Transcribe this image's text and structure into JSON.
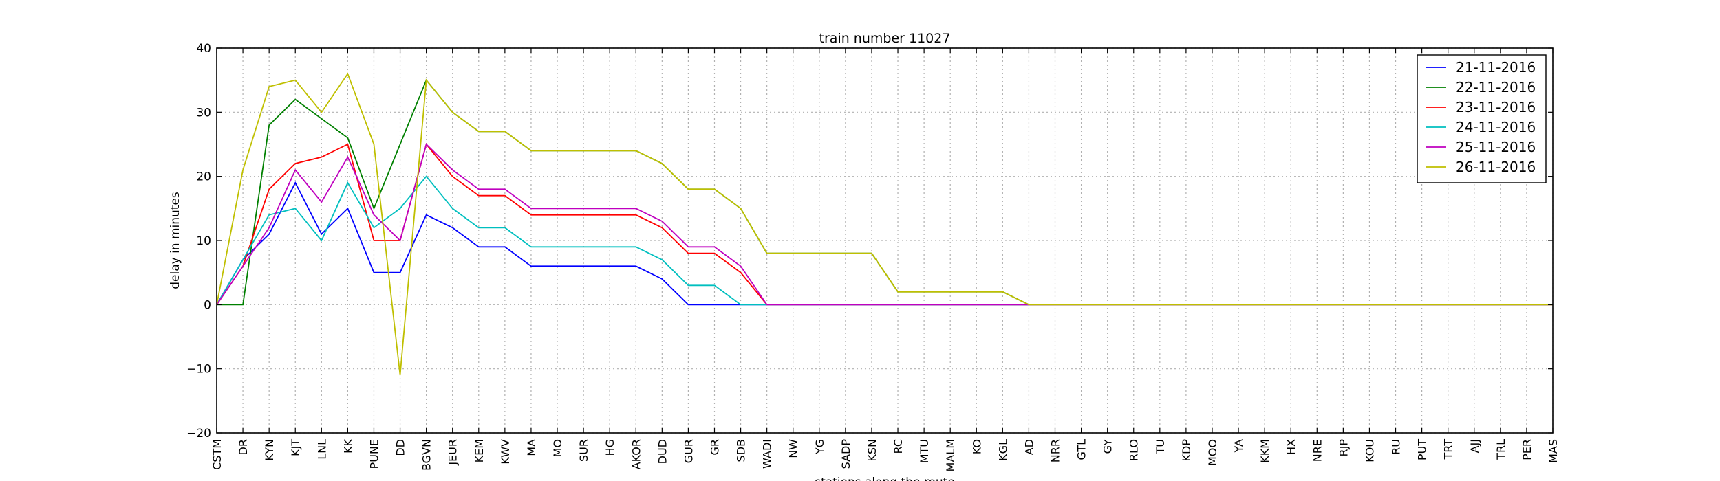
{
  "chart_data": {
    "type": "line",
    "title": "train number 11027",
    "xlabel": "stations along the route",
    "ylabel": "delay in minutes",
    "ylim": [
      -20,
      40
    ],
    "yticks": [
      -20,
      -10,
      0,
      10,
      20,
      30,
      40
    ],
    "grid": true,
    "legend_position": "top-right",
    "categories": [
      "CSTM",
      "DR",
      "KYN",
      "KJT",
      "LNL",
      "KK",
      "PUNE",
      "DD",
      "BGVN",
      "JEUR",
      "KEM",
      "KWV",
      "MA",
      "MO",
      "SUR",
      "HG",
      "AKOR",
      "DUD",
      "GUR",
      "GR",
      "SDB",
      "WADI",
      "NW",
      "YG",
      "SADP",
      "KSN",
      "RC",
      "MTU",
      "MALM",
      "KO",
      "KGL",
      "AD",
      "NRR",
      "GTL",
      "GY",
      "RLO",
      "TU",
      "KDP",
      "MOO",
      "YA",
      "KKM",
      "HX",
      "NRE",
      "RJP",
      "KOU",
      "RU",
      "PUT",
      "TRT",
      "AJJ",
      "TRL",
      "PER",
      "MAS"
    ],
    "series": [
      {
        "name": "21-11-2016",
        "color": "#0000ff",
        "values": [
          0,
          7,
          11,
          19,
          11,
          15,
          5,
          5,
          14,
          12,
          9,
          9,
          6,
          6,
          6,
          6,
          6,
          4,
          0,
          0,
          0,
          0,
          0,
          0,
          0,
          0,
          0,
          0,
          0,
          0,
          0,
          0,
          0,
          0,
          0,
          0,
          0,
          0,
          0,
          0,
          0,
          0,
          0,
          0,
          0,
          0,
          0,
          0,
          0,
          0,
          0,
          0
        ]
      },
      {
        "name": "22-11-2016",
        "color": "#008000",
        "values": [
          0,
          0,
          28,
          32,
          29,
          26,
          15,
          25,
          35,
          30,
          27,
          27,
          24,
          24,
          24,
          24,
          24,
          22,
          18,
          18,
          15,
          8,
          8,
          8,
          8,
          8,
          2,
          2,
          2,
          2,
          2,
          0,
          0,
          0,
          0,
          0,
          0,
          0,
          0,
          0,
          0,
          0,
          0,
          0,
          0,
          0,
          0,
          0,
          0,
          0,
          0,
          0
        ]
      },
      {
        "name": "23-11-2016",
        "color": "#ff0000",
        "values": [
          0,
          6,
          18,
          22,
          23,
          25,
          10,
          10,
          25,
          20,
          17,
          17,
          14,
          14,
          14,
          14,
          14,
          12,
          8,
          8,
          5,
          0,
          0,
          0,
          0,
          0,
          0,
          0,
          0,
          0,
          0,
          0,
          0,
          0,
          0,
          0,
          0,
          0,
          0,
          0,
          0,
          0,
          0,
          0,
          0,
          0,
          0,
          0,
          0,
          0,
          0,
          0
        ]
      },
      {
        "name": "24-11-2016",
        "color": "#00bfbf",
        "values": [
          0,
          7,
          14,
          15,
          10,
          19,
          12,
          15,
          20,
          15,
          12,
          12,
          9,
          9,
          9,
          9,
          9,
          7,
          3,
          3,
          0,
          0,
          0,
          0,
          0,
          0,
          0,
          0,
          0,
          0,
          0,
          0,
          0,
          0,
          0,
          0,
          0,
          0,
          0,
          0,
          0,
          0,
          0,
          0,
          0,
          0,
          0,
          0,
          0,
          0,
          0,
          0
        ]
      },
      {
        "name": "25-11-2016",
        "color": "#bf00bf",
        "values": [
          0,
          6,
          12,
          21,
          16,
          23,
          14,
          10,
          25,
          21,
          18,
          18,
          15,
          15,
          15,
          15,
          15,
          13,
          9,
          9,
          6,
          0,
          0,
          0,
          0,
          0,
          0,
          0,
          0,
          0,
          0,
          0,
          0,
          0,
          0,
          0,
          0,
          0,
          0,
          0,
          0,
          0,
          0,
          0,
          0,
          0,
          0,
          0,
          0,
          0,
          0,
          0
        ]
      },
      {
        "name": "26-11-2016",
        "color": "#bfbf00",
        "values": [
          0,
          21,
          34,
          35,
          30,
          36,
          25,
          -11,
          35,
          30,
          27,
          27,
          24,
          24,
          24,
          24,
          24,
          22,
          18,
          18,
          15,
          8,
          8,
          8,
          8,
          8,
          2,
          2,
          2,
          2,
          2,
          0,
          0,
          0,
          0,
          0,
          0,
          0,
          0,
          0,
          0,
          0,
          0,
          0,
          0,
          0,
          0,
          0,
          0,
          0,
          0,
          0
        ]
      }
    ]
  }
}
